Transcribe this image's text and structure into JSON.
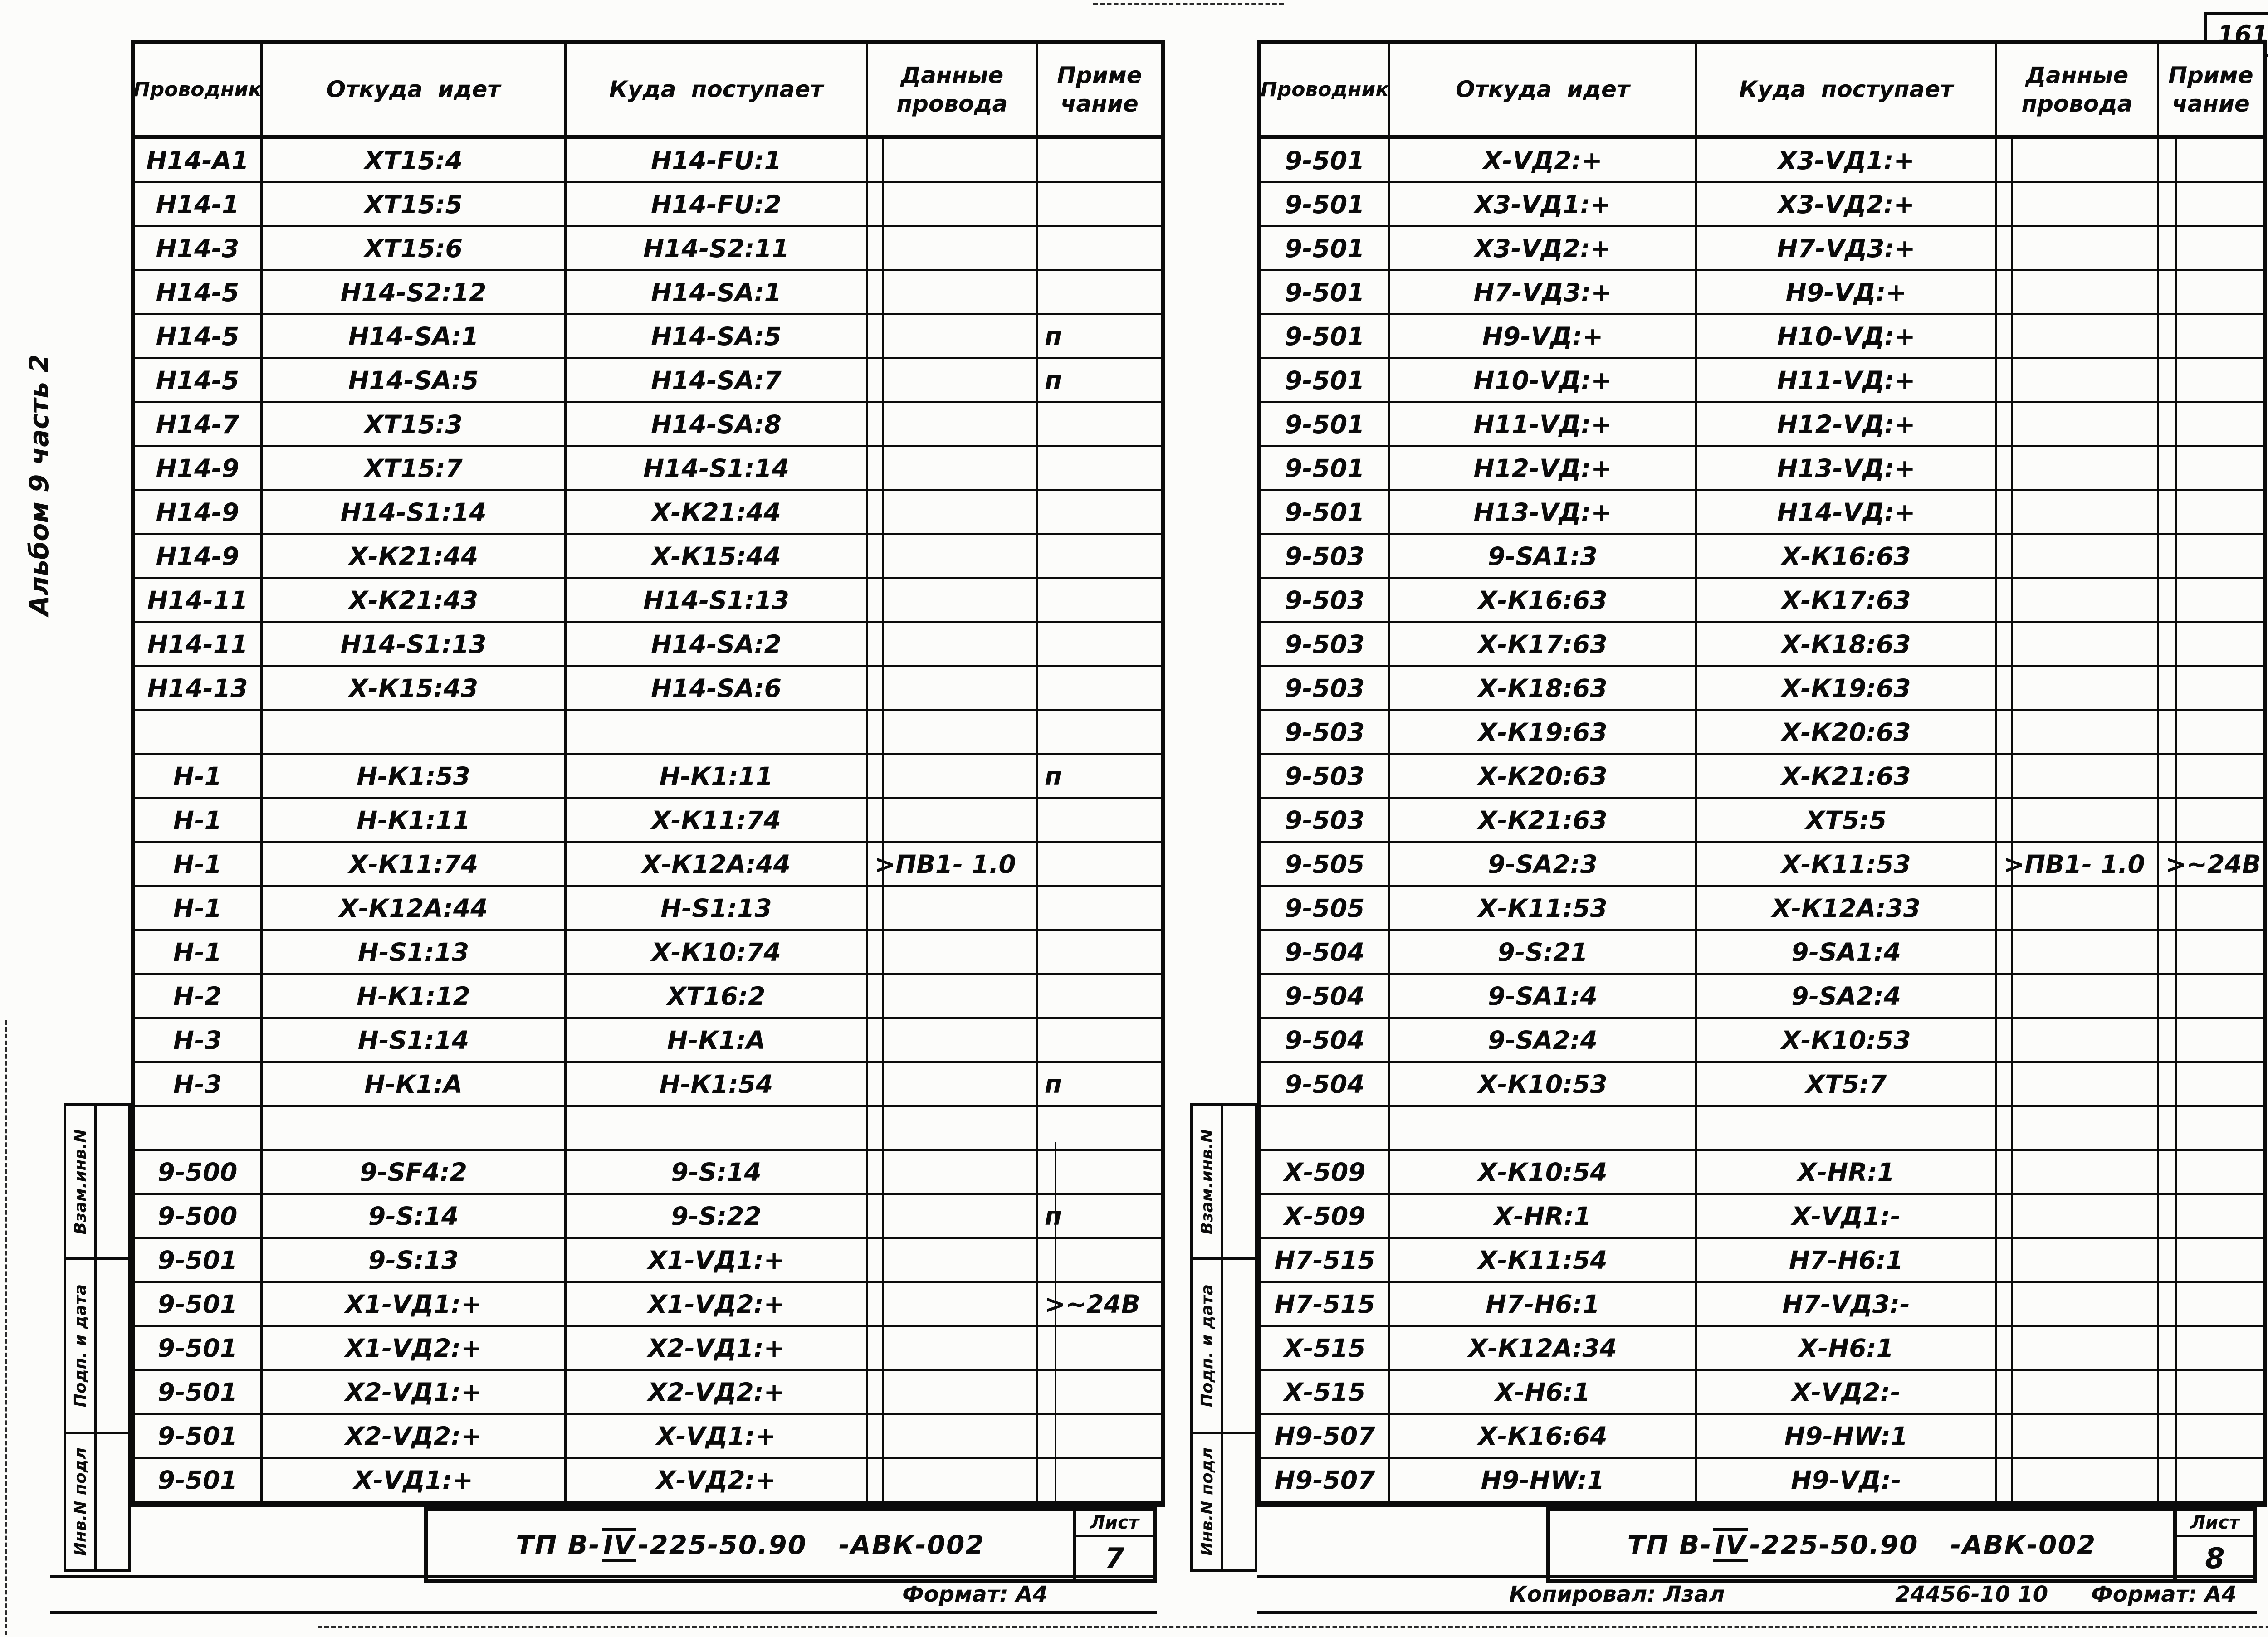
{
  "page_number": "161",
  "side_note": "Альбом 9 часть 2",
  "column_headers": {
    "conductor": "Проводник",
    "from": "Откуда идет",
    "to": "Куда поступает",
    "wire_data": "Данные\nпровода",
    "note": "Приме\nчание"
  },
  "stamp_labels": {
    "vzam": "Взам.инв.N",
    "podp": "Подп. и дата",
    "inv": "Инв.N подл"
  },
  "left_page": {
    "rows": [
      [
        "Н14-А1",
        "ХТ15:4",
        "Н14-FU:1",
        "",
        ""
      ],
      [
        "Н14-1",
        "ХТ15:5",
        "Н14-FU:2",
        "",
        ""
      ],
      [
        "Н14-3",
        "ХТ15:6",
        "Н14-S2:11",
        "",
        ""
      ],
      [
        "Н14-5",
        "Н14-S2:12",
        "Н14-SА:1",
        "",
        ""
      ],
      [
        "Н14-5",
        "Н14-SА:1",
        "Н14-SА:5",
        "",
        "п"
      ],
      [
        "Н14-5",
        "Н14-SА:5",
        "Н14-SА:7",
        "",
        "п"
      ],
      [
        "Н14-7",
        "ХТ15:3",
        "Н14-SА:8",
        "",
        ""
      ],
      [
        "Н14-9",
        "ХТ15:7",
        "Н14-S1:14",
        "",
        ""
      ],
      [
        "Н14-9",
        "Н14-S1:14",
        "Х-К21:44",
        "",
        ""
      ],
      [
        "Н14-9",
        "Х-К21:44",
        "Х-К15:44",
        "",
        ""
      ],
      [
        "Н14-11",
        "Х-К21:43",
        "Н14-S1:13",
        "",
        ""
      ],
      [
        "Н14-11",
        "Н14-S1:13",
        "Н14-SА:2",
        "",
        ""
      ],
      [
        "Н14-13",
        "Х-К15:43",
        "Н14-SА:6",
        "",
        ""
      ],
      [
        "",
        "",
        "",
        "",
        ""
      ],
      [
        "Н-1",
        "Н-К1:53",
        "Н-К1:11",
        "",
        "п"
      ],
      [
        "Н-1",
        "Н-К1:11",
        "Х-К11:74",
        "",
        ""
      ],
      [
        "Н-1",
        "Х-К11:74",
        "Х-К12А:44",
        ">ПВ1- 1.0",
        ""
      ],
      [
        "Н-1",
        "Х-К12А:44",
        "Н-S1:13",
        "",
        ""
      ],
      [
        "Н-1",
        "Н-S1:13",
        "Х-К10:74",
        "",
        ""
      ],
      [
        "Н-2",
        "Н-К1:12",
        "ХТ16:2",
        "",
        ""
      ],
      [
        "Н-3",
        "Н-S1:14",
        "Н-К1:А",
        "",
        ""
      ],
      [
        "Н-3",
        "Н-К1:А",
        "Н-К1:54",
        "",
        "п"
      ],
      [
        "",
        "",
        "",
        "",
        ""
      ],
      [
        "9-500",
        "9-SF4:2",
        "9-S:14",
        "",
        ""
      ],
      [
        "9-500",
        "9-S:14",
        "9-S:22",
        "",
        "п"
      ],
      [
        "9-501",
        "9-S:13",
        "Х1-VД1:+",
        "",
        ""
      ],
      [
        "9-501",
        "Х1-VД1:+",
        "Х1-VД2:+",
        "",
        ">~24В"
      ],
      [
        "9-501",
        "Х1-VД2:+",
        "Х2-VД1:+",
        "",
        ""
      ],
      [
        "9-501",
        "Х2-VД1:+",
        "Х2-VД2:+",
        "",
        ""
      ],
      [
        "9-501",
        "Х2-VД2:+",
        "Х-VД1:+",
        "",
        ""
      ],
      [
        "9-501",
        "Х-VД1:+",
        "Х-VД2:+",
        "",
        ""
      ]
    ],
    "title_block": {
      "doc_prefix": "ТП В-",
      "doc_roman": "IV",
      "doc_rest": "-225-50.90",
      "doc_suffix": "-АВК-002",
      "sheet_label": "Лист",
      "sheet_number": "7"
    },
    "footer": {
      "format": "Формат: А4"
    }
  },
  "right_page": {
    "rows": [
      [
        "9-501",
        "Х-VД2:+",
        "Х3-VД1:+",
        "",
        ""
      ],
      [
        "9-501",
        "Х3-VД1:+",
        "Х3-VД2:+",
        "",
        ""
      ],
      [
        "9-501",
        "Х3-VД2:+",
        "Н7-VД3:+",
        "",
        ""
      ],
      [
        "9-501",
        "Н7-VД3:+",
        "Н9-VД:+",
        "",
        ""
      ],
      [
        "9-501",
        "Н9-VД:+",
        "Н10-VД:+",
        "",
        ""
      ],
      [
        "9-501",
        "Н10-VД:+",
        "Н11-VД:+",
        "",
        ""
      ],
      [
        "9-501",
        "Н11-VД:+",
        "Н12-VД:+",
        "",
        ""
      ],
      [
        "9-501",
        "Н12-VД:+",
        "Н13-VД:+",
        "",
        ""
      ],
      [
        "9-501",
        "Н13-VД:+",
        "Н14-VД:+",
        "",
        ""
      ],
      [
        "9-503",
        "9-SА1:3",
        "Х-К16:63",
        "",
        ""
      ],
      [
        "9-503",
        "Х-К16:63",
        "Х-К17:63",
        "",
        ""
      ],
      [
        "9-503",
        "Х-К17:63",
        "Х-К18:63",
        "",
        ""
      ],
      [
        "9-503",
        "Х-К18:63",
        "Х-К19:63",
        "",
        ""
      ],
      [
        "9-503",
        "Х-К19:63",
        "Х-К20:63",
        "",
        ""
      ],
      [
        "9-503",
        "Х-К20:63",
        "Х-К21:63",
        "",
        ""
      ],
      [
        "9-503",
        "Х-К21:63",
        "ХТ5:5",
        "",
        ""
      ],
      [
        "9-505",
        "9-SА2:3",
        "Х-К11:53",
        ">ПВ1- 1.0",
        ">~24В"
      ],
      [
        "9-505",
        "Х-К11:53",
        "Х-К12А:33",
        "",
        ""
      ],
      [
        "9-504",
        "9-S:21",
        "9-SА1:4",
        "",
        ""
      ],
      [
        "9-504",
        "9-SА1:4",
        "9-SА2:4",
        "",
        ""
      ],
      [
        "9-504",
        "9-SА2:4",
        "Х-К10:53",
        "",
        ""
      ],
      [
        "9-504",
        "Х-К10:53",
        "ХТ5:7",
        "",
        ""
      ],
      [
        "",
        "",
        "",
        "",
        ""
      ],
      [
        "Х-509",
        "Х-К10:54",
        "Х-НR:1",
        "",
        ""
      ],
      [
        "Х-509",
        "Х-НR:1",
        "Х-VД1:-",
        "",
        ""
      ],
      [
        "Н7-515",
        "Х-К11:54",
        "Н7-Н6:1",
        "",
        ""
      ],
      [
        "Н7-515",
        "Н7-Н6:1",
        "Н7-VД3:-",
        "",
        ""
      ],
      [
        "Х-515",
        "Х-К12А:34",
        "Х-Н6:1",
        "",
        ""
      ],
      [
        "Х-515",
        "Х-Н6:1",
        "Х-VД2:-",
        "",
        ""
      ],
      [
        "Н9-507",
        "Х-К16:64",
        "Н9-НW:1",
        "",
        ""
      ],
      [
        "Н9-507",
        "Н9-НW:1",
        "Н9-VД:-",
        "",
        ""
      ]
    ],
    "title_block": {
      "doc_prefix": "ТП В-",
      "doc_roman": "IV",
      "doc_rest": "-225-50.90",
      "doc_suffix": "-АВК-002",
      "sheet_label": "Лист",
      "sheet_number": "8"
    },
    "footer": {
      "copied": "Копировал: Лзал",
      "doc_code": "24456-10  10",
      "format": "Формат: А4"
    }
  }
}
